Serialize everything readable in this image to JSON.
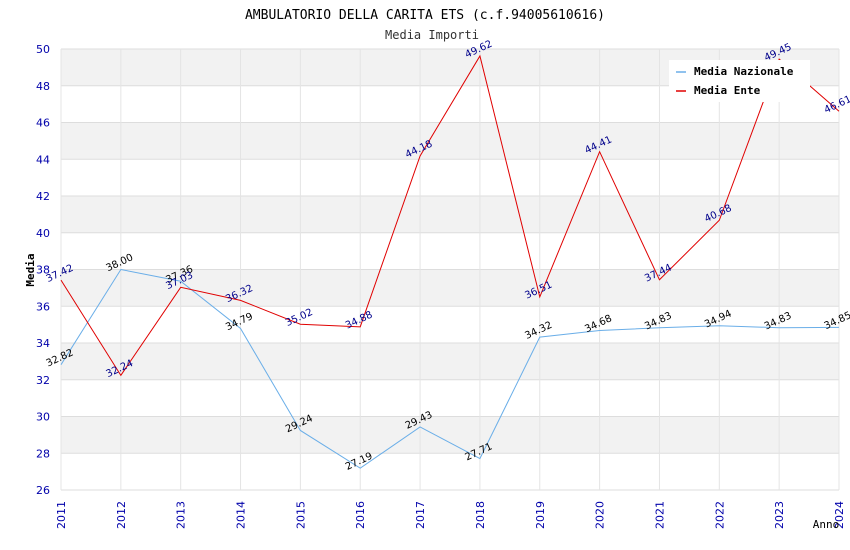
{
  "chart_data": {
    "type": "line",
    "title": "AMBULATORIO DELLA CARITA ETS (c.f.94005610616)",
    "subtitle": "Media Importi",
    "xlabel": "Anno",
    "ylabel": "Media",
    "ylim": [
      26,
      50
    ],
    "yticks": [
      "26",
      "28",
      "30",
      "32",
      "34",
      "36",
      "38",
      "40",
      "42",
      "44",
      "46",
      "48",
      "50"
    ],
    "categories": [
      "2011",
      "2012",
      "2013",
      "2014",
      "2015",
      "2016",
      "2017",
      "2018",
      "2019",
      "2020",
      "2021",
      "2022",
      "2023",
      "2024"
    ],
    "series": [
      {
        "name": "Media Nazionale",
        "color": "#6aaee8",
        "label_color": "#000000",
        "values": [
          32.82,
          38.0,
          37.36,
          34.79,
          29.24,
          27.19,
          29.43,
          27.71,
          34.32,
          34.68,
          34.83,
          34.94,
          34.83,
          34.85
        ],
        "labels": [
          "32.82",
          "38.00",
          "37.36",
          "34.79",
          "29.24",
          "27.19",
          "29.43",
          "27.71",
          "34.32",
          "34.68",
          "34.83",
          "34.94",
          "34.83",
          "34.85"
        ]
      },
      {
        "name": "Media Ente",
        "color": "#e00000",
        "label_color": "#00008b",
        "values": [
          37.42,
          32.24,
          37.03,
          36.32,
          35.02,
          34.88,
          44.18,
          49.62,
          36.51,
          44.41,
          37.44,
          40.68,
          49.45,
          46.61
        ],
        "labels": [
          "37.42",
          "32.24",
          "37.03",
          "36.32",
          "35.02",
          "34.88",
          "44.18",
          "49.62",
          "36.51",
          "44.41",
          "37.44",
          "40.68",
          "49.45",
          "46.61"
        ]
      }
    ],
    "grid": true,
    "legend": "top-right"
  }
}
